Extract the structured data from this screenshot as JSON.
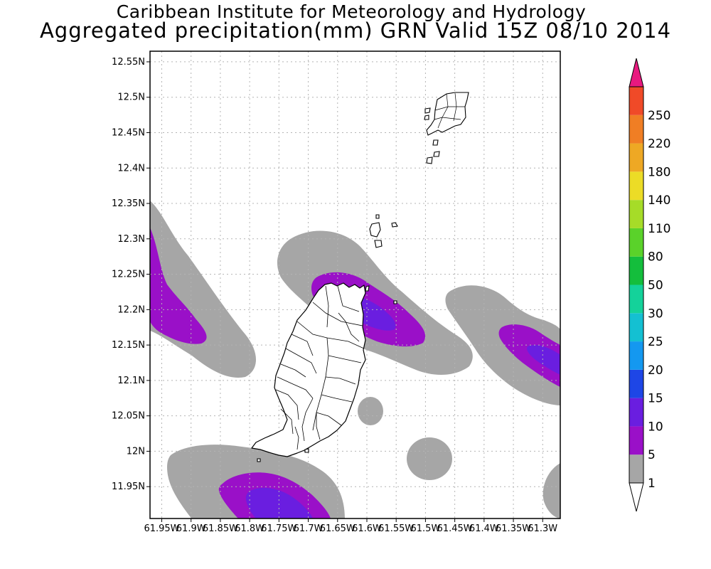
{
  "header": {
    "title_line1": "Caribbean Institute for Meteorology and Hydrology",
    "title_line2": "Aggregated precipitation(mm) GRN Valid 15Z 08/10 2014"
  },
  "map": {
    "lon_range": [
      -61.97,
      -61.27
    ],
    "lat_range": [
      11.905,
      12.565
    ],
    "lat_ticks": [
      {
        "value": 12.55,
        "label": "12.55N"
      },
      {
        "value": 12.5,
        "label": "12.5N"
      },
      {
        "value": 12.45,
        "label": "12.45N"
      },
      {
        "value": 12.4,
        "label": "12.4N"
      },
      {
        "value": 12.35,
        "label": "12.35N"
      },
      {
        "value": 12.3,
        "label": "12.3N"
      },
      {
        "value": 12.25,
        "label": "12.25N"
      },
      {
        "value": 12.2,
        "label": "12.2N"
      },
      {
        "value": 12.15,
        "label": "12.15N"
      },
      {
        "value": 12.1,
        "label": "12.1N"
      },
      {
        "value": 12.05,
        "label": "12.05N"
      },
      {
        "value": 12.0,
        "label": "12N"
      },
      {
        "value": 11.95,
        "label": "11.95N"
      }
    ],
    "lon_ticks": [
      {
        "value": -61.95,
        "label": "61.95W"
      },
      {
        "value": -61.9,
        "label": "61.9W"
      },
      {
        "value": -61.85,
        "label": "61.85W"
      },
      {
        "value": -61.8,
        "label": "61.8W"
      },
      {
        "value": -61.75,
        "label": "61.75W"
      },
      {
        "value": -61.7,
        "label": "61.7W"
      },
      {
        "value": -61.65,
        "label": "61.65W"
      },
      {
        "value": -61.6,
        "label": "61.6W"
      },
      {
        "value": -61.55,
        "label": "61.55W"
      },
      {
        "value": -61.5,
        "label": "61.5W"
      },
      {
        "value": -61.45,
        "label": "61.45W"
      },
      {
        "value": -61.4,
        "label": "61.4W"
      },
      {
        "value": -61.35,
        "label": "61.35W"
      },
      {
        "value": -61.3,
        "label": "61.3W"
      }
    ],
    "grid": true
  },
  "colorbar": {
    "low_arrow_color": "#ffffff",
    "high_arrow_color": "#e8197f",
    "bins": [
      {
        "label": "1",
        "color": "#a6a6a6"
      },
      {
        "label": "5",
        "color": "#9a10c8"
      },
      {
        "label": "10",
        "color": "#6a1ee0"
      },
      {
        "label": "15",
        "color": "#1e46e6"
      },
      {
        "label": "20",
        "color": "#1498f0"
      },
      {
        "label": "25",
        "color": "#14c0d2"
      },
      {
        "label": "30",
        "color": "#14d29a"
      },
      {
        "label": "50",
        "color": "#14be3c"
      },
      {
        "label": "80",
        "color": "#5ad22a"
      },
      {
        "label": "110",
        "color": "#a6dc28"
      },
      {
        "label": "140",
        "color": "#ecdc26"
      },
      {
        "label": "180",
        "color": "#eea824"
      },
      {
        "label": "220",
        "color": "#f07e24"
      },
      {
        "label": "250",
        "color": "#f04a28"
      }
    ]
  },
  "precipitation_fields": [
    {
      "bin": "1-5",
      "color": "#a6a6a6",
      "regions": [
        "west-edge band",
        "central north of Grenada",
        "east band",
        "southwest band",
        "small blob east of Grenada",
        "south blob",
        "southeast corner"
      ]
    },
    {
      "bin": "5-10",
      "color": "#9a10c8",
      "regions": [
        "west edge",
        "north-central over Grenada",
        "east edge",
        "south"
      ]
    },
    {
      "bin": "10-15",
      "color": "#6a1ee0",
      "regions": [
        "north-central core",
        "east edge core",
        "south core"
      ]
    }
  ]
}
